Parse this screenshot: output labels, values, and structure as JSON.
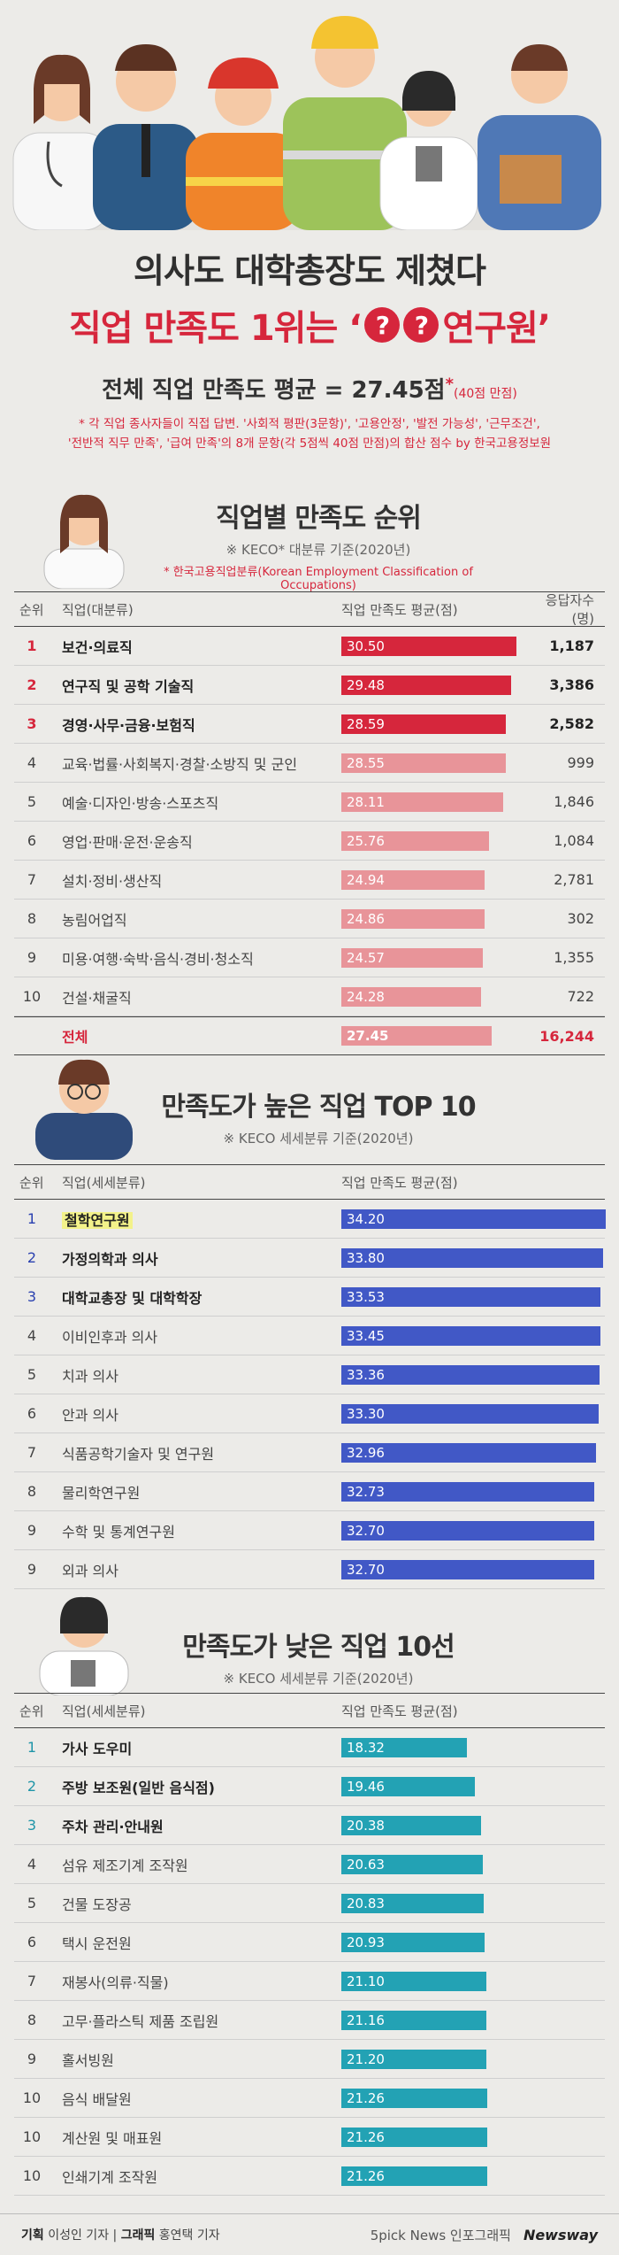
{
  "headline": {
    "line1": "의사도 대학총장도 제쳤다",
    "line2_pre": "직업 만족도 1위는 ‘",
    "q1": "?",
    "q2": "?",
    "line2_post": "연구원’"
  },
  "average": {
    "label": "전체 직업 만족도 평균 = ",
    "value": "27.45점",
    "star": "*",
    "note": "(40점 만점)",
    "footnote1": "* 각 직업 종사자들이 직접 답변. '사회적 평판(3문항)', '고용안정', '발전 가능성', '근무조건',",
    "footnote2": "'전반적 직무 만족', '급여 만족'의 8개 문항(각 5점씩 40점 만점)의 합산 점수 by 한국고용정보원"
  },
  "section1": {
    "title": "직업별 만족도 순위",
    "subtitle": "※ KECO* 대분류 기준(2020년)",
    "subnote": "* 한국고용직업분류(Korean Employment Classification of Occupations)",
    "headers": {
      "rank": "순위",
      "job": "직업(대분류)",
      "score": "직업 만족도 평균(점)",
      "resp": "응답자수(명)"
    },
    "total": {
      "label": "전체",
      "score": "27.45",
      "resp": "16,244"
    }
  },
  "section2": {
    "title": "만족도가 높은 직업 TOP 10",
    "subtitle": "※ KECO 세세분류 기준(2020년)",
    "headers": {
      "rank": "순위",
      "job": "직업(세세분류)",
      "score": "직업 만족도 평균(점)"
    }
  },
  "section3": {
    "title": "만족도가 낮은 직업 10선",
    "subtitle": "※ KECO 세세분류 기준(2020년)",
    "headers": {
      "rank": "순위",
      "job": "직업(세세분류)",
      "score": "직업 만족도 평균(점)"
    }
  },
  "footer": {
    "credit1_label": "기획",
    "credit1": "이성인 기자",
    "credit2_label": "그래픽",
    "credit2": "홍연택 기자",
    "brand1": "5pick News 인포그래픽",
    "brand2": "Newsway"
  },
  "colors": {
    "red": "#d6263c",
    "pink": "#e89499",
    "blue": "#4158c6",
    "teal": "#23a2b4"
  },
  "chart_data": [
    {
      "type": "bar",
      "title": "직업별 만족도 순위",
      "ylabel": "직업 만족도 평균(점)",
      "ylim": [
        0,
        40
      ],
      "categories": [
        "보건·의료직",
        "연구직 및 공학 기술직",
        "경영·사무·금융·보험직",
        "교육·법률·사회복지·경찰·소방직 및 군인",
        "예술·디자인·방송·스포츠직",
        "영업·판매·운전·운송직",
        "설치·정비·생산직",
        "농림어업직",
        "미용·여행·숙박·음식·경비·청소직",
        "건설·채굴직"
      ],
      "ranks": [
        "1",
        "2",
        "3",
        "4",
        "5",
        "6",
        "7",
        "8",
        "9",
        "10"
      ],
      "values": [
        30.5,
        29.48,
        28.59,
        28.55,
        28.11,
        25.76,
        24.94,
        24.86,
        24.57,
        24.28
      ],
      "labels": [
        "30.50",
        "29.48",
        "28.59",
        "28.55",
        "28.11",
        "25.76",
        "24.94",
        "24.86",
        "24.57",
        "24.28"
      ],
      "respondents": [
        "1,187",
        "3,386",
        "2,582",
        "999",
        "1,846",
        "1,084",
        "2,781",
        "302",
        "1,355",
        "722"
      ]
    },
    {
      "type": "bar",
      "title": "만족도가 높은 직업 TOP 10",
      "ylabel": "직업 만족도 평균(점)",
      "ylim": [
        0,
        40
      ],
      "categories": [
        "철학연구원",
        "가정의학과 의사",
        "대학교총장 및 대학학장",
        "이비인후과 의사",
        "치과 의사",
        "안과 의사",
        "식품공학기술자 및 연구원",
        "물리학연구원",
        "수학 및 통계연구원",
        "외과 의사"
      ],
      "ranks": [
        "1",
        "2",
        "3",
        "4",
        "5",
        "6",
        "7",
        "8",
        "9",
        "9"
      ],
      "values": [
        34.2,
        33.8,
        33.53,
        33.45,
        33.36,
        33.3,
        32.96,
        32.73,
        32.7,
        32.7
      ],
      "labels": [
        "34.20",
        "33.80",
        "33.53",
        "33.45",
        "33.36",
        "33.30",
        "32.96",
        "32.73",
        "32.70",
        "32.70"
      ]
    },
    {
      "type": "bar",
      "title": "만족도가 낮은 직업 10선",
      "ylabel": "직업 만족도 평균(점)",
      "ylim": [
        0,
        40
      ],
      "categories": [
        "가사 도우미",
        "주방 보조원(일반 음식점)",
        "주차 관리·안내원",
        "섬유 제조기계 조작원",
        "건물 도장공",
        "택시 운전원",
        "재봉사(의류·직물)",
        "고무·플라스틱 제품 조립원",
        "홀서빙원",
        "음식 배달원",
        "계산원 및 매표원",
        "인쇄기계 조작원"
      ],
      "ranks": [
        "1",
        "2",
        "3",
        "4",
        "5",
        "6",
        "7",
        "8",
        "9",
        "10",
        "10",
        "10"
      ],
      "values": [
        18.32,
        19.46,
        20.38,
        20.63,
        20.83,
        20.93,
        21.1,
        21.16,
        21.2,
        21.26,
        21.26,
        21.26
      ],
      "labels": [
        "18.32",
        "19.46",
        "20.38",
        "20.63",
        "20.83",
        "20.93",
        "21.10",
        "21.16",
        "21.20",
        "21.26",
        "21.26",
        "21.26"
      ]
    }
  ]
}
